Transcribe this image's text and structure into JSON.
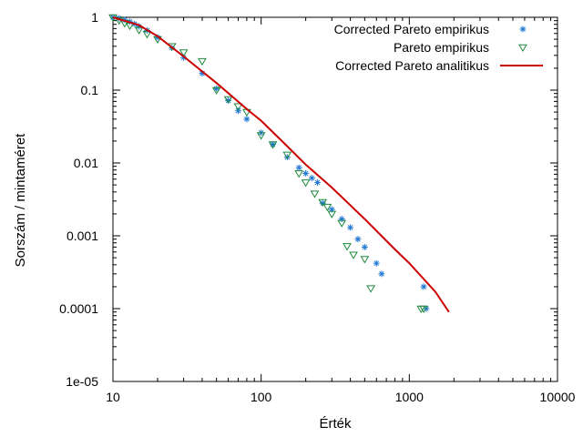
{
  "chart_data": {
    "type": "scatter",
    "xlabel": "Érték",
    "ylabel": "Sorszám / mintaméret",
    "x_scale": "log",
    "y_scale": "log",
    "xlim": [
      10,
      10000
    ],
    "ylim": [
      1e-05,
      1
    ],
    "x_ticks": [
      {
        "value": 10,
        "label": "10"
      },
      {
        "value": 100,
        "label": "100"
      },
      {
        "value": 1000,
        "label": "1000"
      },
      {
        "value": 10000,
        "label": "10000"
      }
    ],
    "y_ticks": [
      {
        "value": 1,
        "label": "1"
      },
      {
        "value": 0.1,
        "label": "0.1"
      },
      {
        "value": 0.01,
        "label": "0.01"
      },
      {
        "value": 0.001,
        "label": "0.001"
      },
      {
        "value": 0.0001,
        "label": "0.0001"
      },
      {
        "value": 1e-05,
        "label": "1e-05"
      }
    ],
    "grid": false,
    "legend_position": "top-right",
    "series": [
      {
        "name": "Corrected Pareto empirikus",
        "marker": "asterisk",
        "color": "#1f77d4",
        "points": [
          [
            10,
            1
          ],
          [
            11,
            0.97
          ],
          [
            12,
            0.92
          ],
          [
            13,
            0.87
          ],
          [
            14,
            0.81
          ],
          [
            15,
            0.75
          ],
          [
            17,
            0.66
          ],
          [
            20,
            0.53
          ],
          [
            25,
            0.38
          ],
          [
            30,
            0.28
          ],
          [
            40,
            0.17
          ],
          [
            50,
            0.105
          ],
          [
            60,
            0.072
          ],
          [
            70,
            0.052
          ],
          [
            80,
            0.04
          ],
          [
            100,
            0.026
          ],
          [
            120,
            0.018
          ],
          [
            150,
            0.012
          ],
          [
            180,
            0.0086
          ],
          [
            200,
            0.0072
          ],
          [
            220,
            0.0062
          ],
          [
            240,
            0.0054
          ],
          [
            260,
            0.0028
          ],
          [
            300,
            0.0023
          ],
          [
            350,
            0.0017
          ],
          [
            400,
            0.0013
          ],
          [
            450,
            0.0009
          ],
          [
            500,
            0.0007
          ],
          [
            600,
            0.00042
          ],
          [
            650,
            0.0003
          ],
          [
            1250,
            0.0002
          ],
          [
            1300,
            0.0001
          ]
        ]
      },
      {
        "name": "Pareto empirikus",
        "marker": "triangle-down",
        "color": "#1e8a3c",
        "points": [
          [
            10,
            1
          ],
          [
            11,
            0.91
          ],
          [
            12,
            0.83
          ],
          [
            13,
            0.77
          ],
          [
            15,
            0.67
          ],
          [
            17,
            0.59
          ],
          [
            20,
            0.5
          ],
          [
            25,
            0.4
          ],
          [
            30,
            0.33
          ],
          [
            40,
            0.25
          ],
          [
            50,
            0.1
          ],
          [
            60,
            0.075
          ],
          [
            70,
            0.06
          ],
          [
            80,
            0.05
          ],
          [
            100,
            0.024
          ],
          [
            120,
            0.018
          ],
          [
            150,
            0.013
          ],
          [
            180,
            0.0072
          ],
          [
            200,
            0.0054
          ],
          [
            230,
            0.0038
          ],
          [
            260,
            0.0029
          ],
          [
            280,
            0.0025
          ],
          [
            300,
            0.002
          ],
          [
            350,
            0.0015
          ],
          [
            380,
            0.00072
          ],
          [
            420,
            0.00055
          ],
          [
            500,
            0.00048
          ],
          [
            550,
            0.00019
          ],
          [
            1200,
            0.0001
          ],
          [
            1250,
            0.0001
          ]
        ]
      },
      {
        "name": "Corrected Pareto analitikus",
        "marker": "line",
        "color": "#cc0000",
        "points": [
          [
            10,
            1
          ],
          [
            15,
            0.78
          ],
          [
            20,
            0.55
          ],
          [
            30,
            0.29
          ],
          [
            50,
            0.125
          ],
          [
            80,
            0.055
          ],
          [
            100,
            0.038
          ],
          [
            150,
            0.017
          ],
          [
            200,
            0.0095
          ],
          [
            300,
            0.0046
          ],
          [
            500,
            0.0017
          ],
          [
            800,
            0.00065
          ],
          [
            1000,
            0.00042
          ],
          [
            1500,
            0.00017
          ],
          [
            1850,
            9e-05
          ]
        ]
      }
    ]
  }
}
